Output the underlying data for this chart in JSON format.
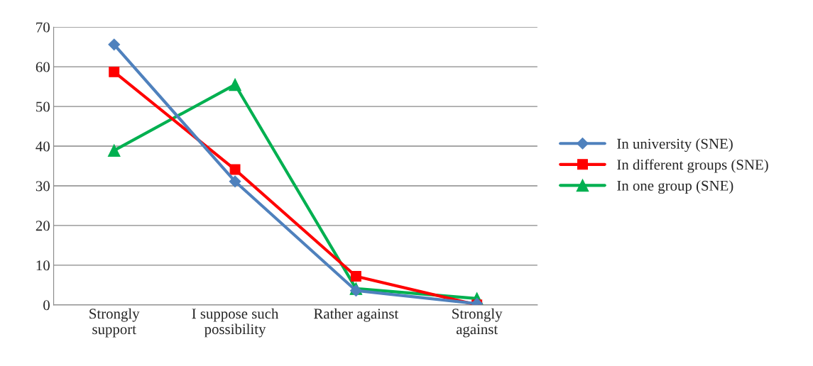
{
  "chart_data": {
    "type": "line",
    "categories": [
      "Strongly\nsupport",
      "I suppose such\npossibility",
      "Rather against",
      "Strongly\nagainst"
    ],
    "series": [
      {
        "name": "In university (SNE)",
        "color": "#4f81bd",
        "marker": "diamond",
        "values": [
          65.6,
          31.1,
          3.6,
          0.3
        ]
      },
      {
        "name": "In different groups (SNE)",
        "color": "#ff0000",
        "marker": "square",
        "values": [
          58.7,
          34.1,
          7.2,
          0
        ]
      },
      {
        "name": "In one group (SNE)",
        "color": "#00b050",
        "marker": "triangle",
        "values": [
          38.9,
          55.5,
          4.1,
          1.6
        ]
      }
    ],
    "ylim": [
      0,
      70
    ],
    "yticks": [
      0,
      10,
      20,
      30,
      40,
      50,
      60,
      70
    ],
    "grid": "y",
    "legend": "right",
    "line_style": "solid"
  }
}
